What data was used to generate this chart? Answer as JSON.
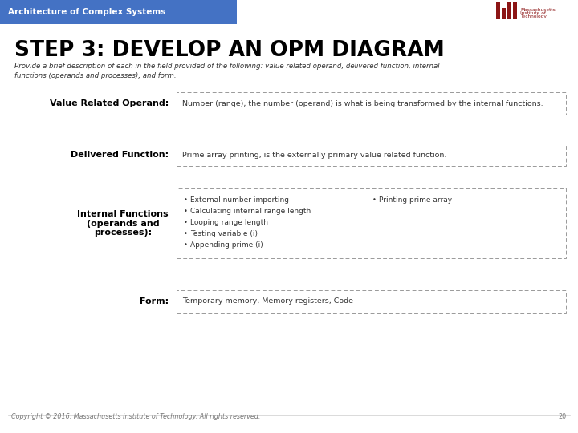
{
  "header_text": "Architecture of Complex Systems",
  "header_bg": "#4472c4",
  "header_text_color": "#ffffff",
  "title": "STEP 3: DEVELOP AN OPM DIAGRAM",
  "subtitle": "Provide a brief description of each in the field provided of the following: value related operand, delivered function, internal\nfunctions (operands and processes), and form.",
  "rows": [
    {
      "label": "Value Related Operand:",
      "content": "Number (range), the number (operand) is what is being transformed by the internal functions."
    },
    {
      "label": "Delivered Function:",
      "content": "Prime array printing, is the externally primary value related function."
    },
    {
      "label": "Internal Functions\n(operands and\nprocesses):",
      "content_bullets_col1": [
        "External number importing",
        "Calculating internal range length",
        "Looping range length",
        "Testing variable (i)",
        "Appending prime (i)"
      ],
      "content_bullets_col2": [
        "Printing prime array"
      ]
    },
    {
      "label": "Form:",
      "content": "Temporary memory, Memory registers, Code"
    }
  ],
  "footer_text": "Copyright © 2016. Massachusetts Institute of Technology. All rights reserved.",
  "footer_page": "20",
  "bg_color": "#ffffff",
  "label_color": "#000000",
  "content_color": "#333333",
  "dash_color": "#999999",
  "title_color": "#000000",
  "subtitle_color": "#333333",
  "mit_color": "#8c1515"
}
